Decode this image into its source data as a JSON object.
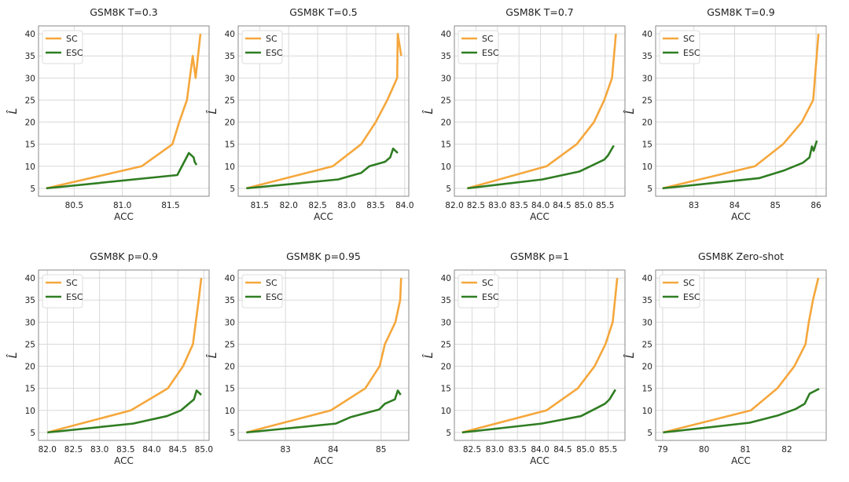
{
  "colors": {
    "SC": "#f5a73c",
    "ESC": "#2f7d22",
    "grid": "#d9d9d9",
    "frame": "#888888"
  },
  "chart_data": [
    {
      "type": "line",
      "title": "GSM8K T=0.3",
      "xlabel": "ACC",
      "ylabel": "L̂",
      "xlim": [
        80.13,
        81.9
      ],
      "ylim": [
        3.2,
        41.8
      ],
      "xticks": [
        "80.5",
        "81.0",
        "81.5"
      ],
      "yticks": [
        "5",
        "10",
        "15",
        "20",
        "25",
        "30",
        "35",
        "40"
      ],
      "grid": true,
      "legend": "top-left",
      "series": [
        {
          "name": "SC",
          "points": [
            [
              80.21,
              5
            ],
            [
              81.2,
              10
            ],
            [
              81.52,
              15
            ],
            [
              81.59,
              20
            ],
            [
              81.67,
              25
            ],
            [
              81.73,
              35
            ],
            [
              81.76,
              30
            ],
            [
              81.81,
              40
            ]
          ]
        },
        {
          "name": "ESC",
          "points": [
            [
              80.21,
              5
            ],
            [
              81.57,
              8
            ],
            [
              81.69,
              13
            ],
            [
              81.74,
              12
            ],
            [
              81.75,
              11
            ],
            [
              81.77,
              10.3
            ]
          ]
        }
      ]
    },
    {
      "type": "line",
      "title": "GSM8K T=0.5",
      "xlabel": "ACC",
      "ylabel": "L̂",
      "xlim": [
        81.13,
        84.07
      ],
      "ylim": [
        3.2,
        41.8
      ],
      "xticks": [
        "81.5",
        "82.0",
        "82.5",
        "83.0",
        "83.5",
        "84.0"
      ],
      "yticks": [
        "5",
        "10",
        "15",
        "20",
        "25",
        "30",
        "35",
        "40"
      ],
      "grid": true,
      "legend": "top-left",
      "series": [
        {
          "name": "SC",
          "points": [
            [
              81.27,
              5
            ],
            [
              82.76,
              10
            ],
            [
              83.25,
              15
            ],
            [
              83.5,
              20
            ],
            [
              83.7,
              25
            ],
            [
              83.87,
              30
            ],
            [
              83.88,
              40
            ],
            [
              83.94,
              35
            ]
          ]
        },
        {
          "name": "ESC",
          "points": [
            [
              81.27,
              5
            ],
            [
              82.85,
              7
            ],
            [
              83.25,
              8.5
            ],
            [
              83.39,
              10
            ],
            [
              83.66,
              11
            ],
            [
              83.75,
              12
            ],
            [
              83.8,
              14
            ],
            [
              83.88,
              13
            ]
          ]
        }
      ]
    },
    {
      "type": "line",
      "title": "GSM8K T=0.7",
      "xlabel": "ACC",
      "ylabel": "L̂",
      "xlim": [
        82.0,
        85.96
      ],
      "ylim": [
        3.2,
        41.8
      ],
      "xticks": [
        "82.0",
        "82.5",
        "83.0",
        "83.5",
        "84.0",
        "84.5",
        "85.0",
        "85.5"
      ],
      "yticks": [
        "5",
        "10",
        "15",
        "20",
        "25",
        "30",
        "35",
        "40"
      ],
      "grid": true,
      "legend": "top-left",
      "series": [
        {
          "name": "SC",
          "points": [
            [
              82.3,
              5
            ],
            [
              84.14,
              10
            ],
            [
              84.84,
              15
            ],
            [
              85.24,
              20
            ],
            [
              85.48,
              25
            ],
            [
              85.66,
              30
            ],
            [
              85.75,
              40
            ]
          ]
        },
        {
          "name": "ESC",
          "points": [
            [
              82.3,
              5
            ],
            [
              84.04,
              7
            ],
            [
              84.9,
              8.8
            ],
            [
              85.48,
              11.5
            ],
            [
              85.57,
              12.5
            ],
            [
              85.7,
              14.7
            ]
          ]
        }
      ]
    },
    {
      "type": "line",
      "title": "GSM8K T=0.9",
      "xlabel": "ACC",
      "ylabel": "L̂",
      "xlim": [
        82.06,
        86.25
      ],
      "ylim": [
        3.2,
        41.8
      ],
      "xticks": [
        "83",
        "84",
        "85",
        "86"
      ],
      "yticks": [
        "5",
        "10",
        "15",
        "20",
        "25",
        "30",
        "35",
        "40"
      ],
      "grid": true,
      "legend": "top-left",
      "series": [
        {
          "name": "SC",
          "points": [
            [
              82.23,
              5
            ],
            [
              84.5,
              10
            ],
            [
              85.19,
              15
            ],
            [
              85.65,
              20
            ],
            [
              85.93,
              25
            ],
            [
              86.06,
              40
            ]
          ]
        },
        {
          "name": "ESC",
          "points": [
            [
              82.23,
              5
            ],
            [
              84.6,
              7.3
            ],
            [
              85.2,
              9
            ],
            [
              85.68,
              10.8
            ],
            [
              85.84,
              12
            ],
            [
              85.9,
              14.5
            ],
            [
              85.94,
              13.5
            ],
            [
              86.02,
              15.8
            ]
          ]
        }
      ]
    },
    {
      "type": "line",
      "title": "GSM8K p=0.9",
      "xlabel": "ACC",
      "ylabel": "L̂",
      "xlim": [
        81.83,
        85.1
      ],
      "ylim": [
        3.2,
        41.8
      ],
      "xticks": [
        "82.0",
        "82.5",
        "83.0",
        "83.5",
        "84.0",
        "84.5",
        "85.0"
      ],
      "yticks": [
        "5",
        "10",
        "15",
        "20",
        "25",
        "30",
        "35",
        "40"
      ],
      "grid": true,
      "legend": "top-left",
      "series": [
        {
          "name": "SC",
          "points": [
            [
              82.0,
              5
            ],
            [
              83.6,
              10
            ],
            [
              84.31,
              15
            ],
            [
              84.6,
              20
            ],
            [
              84.79,
              25
            ],
            [
              84.9,
              35
            ],
            [
              84.95,
              40
            ]
          ]
        },
        {
          "name": "ESC",
          "points": [
            [
              82.0,
              5
            ],
            [
              83.64,
              7
            ],
            [
              84.29,
              8.7
            ],
            [
              84.56,
              10
            ],
            [
              84.81,
              12.5
            ],
            [
              84.86,
              14.5
            ],
            [
              84.95,
              13.5
            ]
          ]
        }
      ]
    },
    {
      "type": "line",
      "title": "GSM8K p=0.95",
      "xlabel": "ACC",
      "ylabel": "L̂",
      "xlim": [
        82.01,
        85.58
      ],
      "ylim": [
        3.2,
        41.8
      ],
      "xticks": [
        "83",
        "84",
        "85"
      ],
      "yticks": [
        "5",
        "10",
        "15",
        "20",
        "25",
        "30",
        "35",
        "40"
      ],
      "grid": true,
      "legend": "top-left",
      "series": [
        {
          "name": "SC",
          "points": [
            [
              82.18,
              5
            ],
            [
              83.95,
              10
            ],
            [
              84.67,
              15
            ],
            [
              84.97,
              20
            ],
            [
              85.08,
              25
            ],
            [
              85.3,
              30
            ],
            [
              85.4,
              35
            ],
            [
              85.42,
              40
            ]
          ]
        },
        {
          "name": "ESC",
          "points": [
            [
              82.18,
              5
            ],
            [
              84.05,
              7
            ],
            [
              84.37,
              8.5
            ],
            [
              84.96,
              10.2
            ],
            [
              85.08,
              11.5
            ],
            [
              85.29,
              12.5
            ],
            [
              85.35,
              14.5
            ],
            [
              85.41,
              13.5
            ]
          ]
        }
      ]
    },
    {
      "type": "line",
      "title": "GSM8K p=1",
      "xlabel": "ACC",
      "ylabel": "L̂",
      "xlim": [
        82.11,
        85.87
      ],
      "ylim": [
        3.2,
        41.8
      ],
      "xticks": [
        "82.5",
        "83.0",
        "83.5",
        "84.0",
        "84.5",
        "85.0",
        "85.5"
      ],
      "yticks": [
        "5",
        "10",
        "15",
        "20",
        "25",
        "30",
        "35",
        "40"
      ],
      "grid": true,
      "legend": "top-left",
      "series": [
        {
          "name": "SC",
          "points": [
            [
              82.28,
              5
            ],
            [
              84.14,
              10
            ],
            [
              84.83,
              15
            ],
            [
              85.2,
              20
            ],
            [
              85.44,
              25
            ],
            [
              85.6,
              30
            ],
            [
              85.7,
              40
            ]
          ]
        },
        {
          "name": "ESC",
          "points": [
            [
              82.28,
              5
            ],
            [
              84.03,
              7
            ],
            [
              84.9,
              8.7
            ],
            [
              85.43,
              11.5
            ],
            [
              85.53,
              12.5
            ],
            [
              85.66,
              14.7
            ]
          ]
        }
      ]
    },
    {
      "type": "line",
      "title": "GSM8K Zero-shot",
      "xlabel": "ACC",
      "ylabel": "L̂",
      "xlim": [
        78.83,
        82.95
      ],
      "ylim": [
        3.2,
        41.8
      ],
      "xticks": [
        "79",
        "80",
        "81",
        "82"
      ],
      "yticks": [
        "5",
        "10",
        "15",
        "20",
        "25",
        "30",
        "35",
        "40"
      ],
      "grid": true,
      "legend": "top-left",
      "series": [
        {
          "name": "SC",
          "points": [
            [
              79.01,
              5
            ],
            [
              81.13,
              10
            ],
            [
              81.77,
              15
            ],
            [
              82.18,
              20
            ],
            [
              82.45,
              25
            ],
            [
              82.53,
              30
            ],
            [
              82.63,
              35
            ],
            [
              82.76,
              40
            ]
          ]
        },
        {
          "name": "ESC",
          "points": [
            [
              79.01,
              5
            ],
            [
              81.1,
              7.2
            ],
            [
              81.8,
              8.9
            ],
            [
              82.21,
              10.3
            ],
            [
              82.43,
              11.5
            ],
            [
              82.55,
              13.8
            ],
            [
              82.78,
              14.9
            ]
          ]
        }
      ]
    }
  ]
}
